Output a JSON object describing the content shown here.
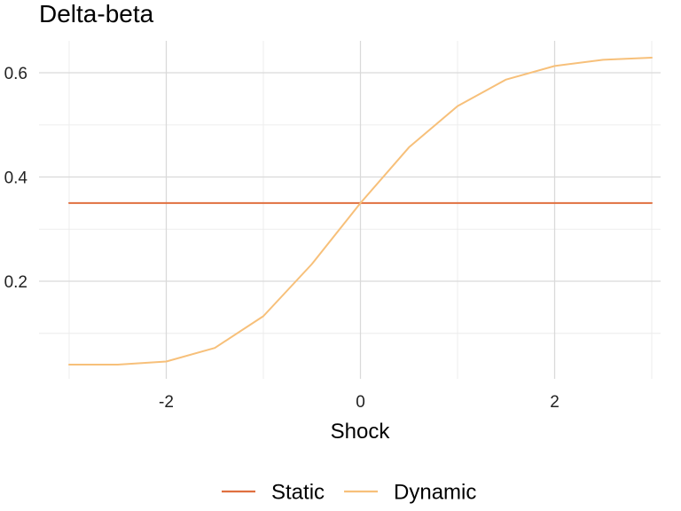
{
  "chart_data": {
    "type": "line",
    "title": "Delta-beta",
    "xlabel": "Shock",
    "ylabel": "",
    "xlim": [
      -3,
      3
    ],
    "ylim": [
      0.03,
      0.64
    ],
    "x_ticks": [
      -2,
      0,
      2
    ],
    "x_tick_labels": [
      "-2",
      "0",
      "2"
    ],
    "y_ticks": [
      0.2,
      0.4,
      0.6
    ],
    "y_tick_labels": [
      "0.2",
      "0.4",
      "0.6"
    ],
    "grid": true,
    "legend_position": "bottom",
    "x": [
      -3,
      -2.5,
      -2,
      -1.5,
      -1,
      -0.5,
      0,
      0.5,
      1,
      1.5,
      2,
      2.5,
      3
    ],
    "series": [
      {
        "name": "Static",
        "color": "#e07040",
        "values": [
          0.35,
          0.35,
          0.35,
          0.35,
          0.35,
          0.35,
          0.35,
          0.35,
          0.35,
          0.35,
          0.35,
          0.35,
          0.35
        ]
      },
      {
        "name": "Dynamic",
        "color": "#f7c07a",
        "values": [
          0.04,
          0.04,
          0.046,
          0.072,
          0.133,
          0.233,
          0.35,
          0.457,
          0.536,
          0.587,
          0.613,
          0.625,
          0.629
        ]
      }
    ]
  }
}
